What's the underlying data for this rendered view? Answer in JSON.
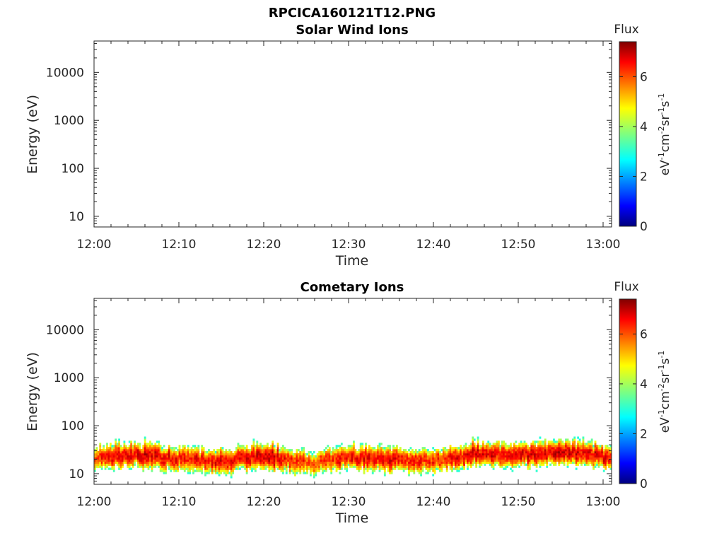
{
  "figure_title": "RPCICA160121T12.PNG",
  "chart_data": [
    {
      "type": "heatmap",
      "title": "Solar Wind Ions",
      "xlabel": "Time",
      "ylabel": "Energy (eV)",
      "y_scale": "log",
      "ylim": [
        6,
        45000
      ],
      "xlim": [
        "12:00",
        "13:01"
      ],
      "x_ticks": [
        "12:00",
        "12:10",
        "12:20",
        "12:30",
        "12:40",
        "12:50",
        "13:00"
      ],
      "y_ticks": [
        "10",
        "100",
        "1000",
        "10000"
      ],
      "colorbar": {
        "label": "Flux",
        "units": "eV-1cm-2sr-1s-1",
        "range": [
          0,
          7.4
        ],
        "ticks": [
          "0",
          "2",
          "4",
          "6"
        ],
        "colormap": "jet"
      },
      "data": "no flux observed (empty panel)"
    },
    {
      "type": "heatmap",
      "title": "Cometary Ions",
      "xlabel": "Time",
      "ylabel": "Energy (eV)",
      "y_scale": "log",
      "ylim": [
        6,
        45000
      ],
      "xlim": [
        "12:00",
        "13:01"
      ],
      "x_ticks": [
        "12:00",
        "12:10",
        "12:20",
        "12:30",
        "12:40",
        "12:50",
        "13:00"
      ],
      "y_ticks": [
        "10",
        "100",
        "1000",
        "10000"
      ],
      "colorbar": {
        "label": "Flux",
        "units": "eV-1cm-2sr-1s-1",
        "range": [
          0,
          7.4
        ],
        "ticks": [
          "0",
          "2",
          "4",
          "6"
        ],
        "colormap": "jet"
      },
      "band": {
        "energy_min_eV": 6,
        "energy_max_eV": 80,
        "peak_energy_eV": 22,
        "peak_flux": 6.8,
        "time_minutes": [
          0,
          5,
          10,
          15,
          20,
          25,
          30,
          35,
          40,
          45,
          50,
          55,
          61
        ],
        "center_energy_eV": [
          22,
          25,
          20,
          18,
          24,
          16,
          22,
          20,
          18,
          26,
          24,
          28,
          22
        ],
        "peak_flux_series": [
          6.5,
          7.0,
          6.6,
          6.8,
          7.1,
          6.2,
          6.7,
          6.9,
          6.4,
          7.0,
          6.8,
          7.1,
          6.6
        ]
      }
    }
  ]
}
